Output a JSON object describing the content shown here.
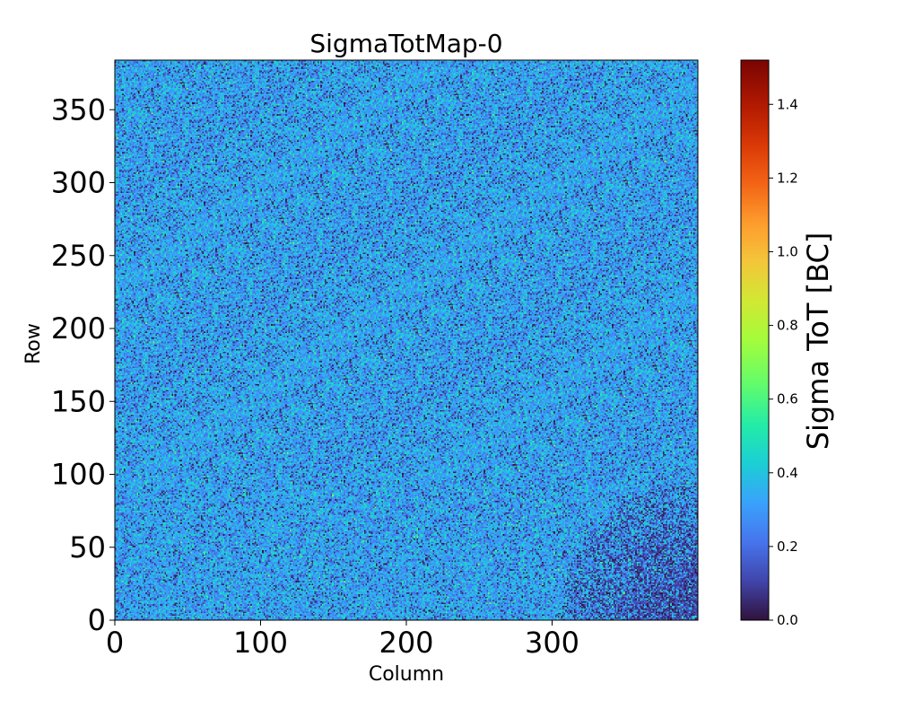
{
  "chart_data": {
    "type": "heatmap",
    "title": "SigmaTotMap-0",
    "xlabel": "Column",
    "ylabel": "Row",
    "xlim": [
      0,
      400
    ],
    "ylim": [
      0,
      384
    ],
    "x_ticks": [
      0,
      100,
      200,
      300
    ],
    "y_ticks": [
      0,
      50,
      100,
      150,
      200,
      250,
      300,
      350
    ],
    "colorbar": {
      "label": "Sigma ToT [BC]",
      "colormap": "turbo",
      "range": [
        0,
        1.52
      ],
      "ticks": [
        "0.0",
        "0.2",
        "0.4",
        "0.6",
        "0.8",
        "1.0",
        "1.2",
        "1.4"
      ]
    },
    "value_distribution": {
      "typical_mean": 0.32,
      "typical_spread": 0.09,
      "low_region": "bottom-right corner (column > ~320, row < ~50) with many pixels near 0"
    }
  },
  "colors": {
    "background": "#ffffff",
    "axis": "#000000"
  }
}
